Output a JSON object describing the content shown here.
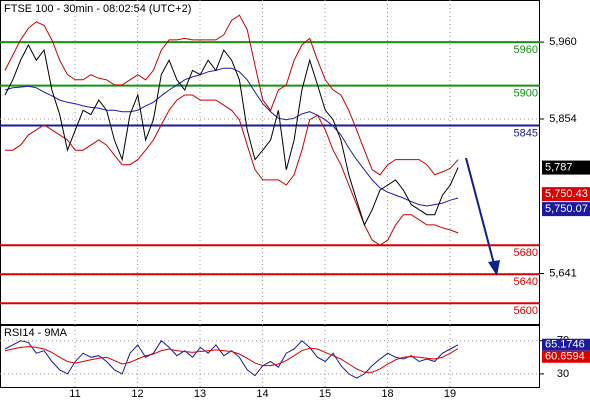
{
  "chart_data": [
    {
      "type": "line",
      "title": "FTSE 100 - 30min - 08:02:54 (UTC+2)",
      "x": [
        -0.12,
        0.005,
        0.13,
        0.255,
        0.38,
        0.505,
        0.63,
        0.755,
        0.88,
        1.005,
        1.13,
        1.255,
        1.38,
        1.505,
        1.63,
        1.755,
        1.88,
        2.005,
        2.13,
        2.255,
        2.38,
        2.505,
        2.63,
        2.755,
        2.88,
        3.005,
        3.13,
        3.255,
        3.38,
        3.505,
        3.63,
        3.755,
        3.88,
        4.005,
        4.13,
        4.255,
        4.38,
        4.505,
        4.63,
        4.755,
        4.88,
        5.005,
        5.13,
        5.255,
        5.38,
        5.505,
        5.63,
        5.755,
        5.88,
        6.005,
        6.13,
        6.255,
        6.38,
        6.505,
        6.63,
        6.755,
        6.88,
        7.005,
        7.13
      ],
      "xlim": [
        -0.2,
        8.44
      ],
      "xticks": [
        {
          "value": 1,
          "label": "11"
        },
        {
          "value": 2,
          "label": "12"
        },
        {
          "value": 3,
          "label": "13"
        },
        {
          "value": 4,
          "label": "14"
        },
        {
          "value": 5,
          "label": "15"
        },
        {
          "value": 6,
          "label": "18"
        },
        {
          "value": 7,
          "label": "19"
        }
      ],
      "ylim": [
        5570,
        6018
      ],
      "yticks": [
        {
          "value": 5960,
          "label": "5,960"
        },
        {
          "value": 5854,
          "label": "5,854"
        },
        {
          "value": 5641,
          "label": "5,641"
        }
      ],
      "grid": true,
      "series": [
        {
          "color": "#cc0000",
          "values": [
            5921,
            5942,
            5963,
            5979,
            5988,
            5983,
            5963,
            5935,
            5915,
            5908,
            5908,
            5915,
            5910,
            5908,
            5901,
            5901,
            5908,
            5915,
            5908,
            5921,
            5949,
            5963,
            5963,
            5965,
            5963,
            5963,
            5963,
            5963,
            5970,
            5990,
            5997,
            5977,
            5928,
            5880,
            5866,
            5894,
            5901,
            5935,
            5956,
            5965,
            5935,
            5908,
            5894,
            5887,
            5866,
            5839,
            5811,
            5784,
            5777,
            5791,
            5798,
            5798,
            5798,
            5798,
            5791,
            5777,
            5781,
            5786,
            5798
          ]
        },
        {
          "color": "#cc0000",
          "values": [
            5811,
            5811,
            5818,
            5832,
            5839,
            5846,
            5839,
            5832,
            5825,
            5811,
            5811,
            5818,
            5825,
            5818,
            5804,
            5791,
            5791,
            5798,
            5811,
            5825,
            5846,
            5866,
            5880,
            5887,
            5887,
            5880,
            5880,
            5880,
            5873,
            5866,
            5853,
            5818,
            5784,
            5770,
            5770,
            5770,
            5763,
            5777,
            5811,
            5853,
            5859,
            5839,
            5811,
            5791,
            5763,
            5736,
            5708,
            5687,
            5680,
            5687,
            5708,
            5722,
            5722,
            5715,
            5708,
            5708,
            5704,
            5701,
            5697
          ]
        },
        {
          "color": "#1c1cb0",
          "values": [
            5894,
            5897,
            5898,
            5899,
            5897,
            5891,
            5886,
            5880,
            5877,
            5875,
            5872,
            5870,
            5869,
            5866,
            5866,
            5864,
            5864,
            5866,
            5872,
            5877,
            5886,
            5894,
            5901,
            5908,
            5912,
            5915,
            5919,
            5921,
            5924,
            5924,
            5919,
            5908,
            5891,
            5875,
            5864,
            5855,
            5853,
            5855,
            5861,
            5864,
            5859,
            5853,
            5844,
            5832,
            5814,
            5798,
            5784,
            5770,
            5759,
            5753,
            5749,
            5745,
            5740,
            5736,
            5734,
            5736,
            5738,
            5742,
            5745
          ]
        },
        {
          "color": "#000000",
          "values": [
            5887,
            5908,
            5935,
            5956,
            5935,
            5949,
            5894,
            5860,
            5811,
            5839,
            5866,
            5860,
            5880,
            5866,
            5825,
            5798,
            5860,
            5887,
            5825,
            5853,
            5915,
            5935,
            5908,
            5894,
            5921,
            5915,
            5935,
            5921,
            5949,
            5935,
            5908,
            5839,
            5798,
            5811,
            5825,
            5866,
            5784,
            5825,
            5894,
            5935,
            5901,
            5866,
            5853,
            5825,
            5777,
            5742,
            5708,
            5729,
            5756,
            5763,
            5770,
            5756,
            5736,
            5729,
            5722,
            5722,
            5749,
            5763,
            5787
          ]
        }
      ],
      "levels": [
        {
          "value": 5960,
          "color": "#149414"
        },
        {
          "value": 5900,
          "color": "#149414"
        },
        {
          "value": 5845,
          "color": "#1a1aa0"
        },
        {
          "value": 5680,
          "color": "#dd0000"
        },
        {
          "value": 5640,
          "color": "#dd0000"
        },
        {
          "value": 5600,
          "color": "#dd0000"
        }
      ],
      "markers": [
        {
          "value": 5787,
          "label": "5,787",
          "color": "#000000"
        },
        {
          "value": 5750.43,
          "label": "5,750.43",
          "color": "#dd0000"
        },
        {
          "value": 5750.07,
          "label": "5,750.07",
          "color": "#1a1aa0"
        }
      ]
    },
    {
      "type": "line",
      "title": "RSI14 - 9MA",
      "ylim": [
        13,
        89
      ],
      "yticks": [
        30,
        70
      ],
      "series": [
        {
          "color": "#1a1aa0",
          "values": [
            60,
            65,
            70,
            68,
            55,
            58,
            45,
            35,
            30,
            45,
            55,
            50,
            52,
            45,
            35,
            30,
            55,
            65,
            50,
            55,
            70,
            62,
            52,
            58,
            50,
            62,
            55,
            65,
            52,
            58,
            50,
            35,
            28,
            40,
            45,
            38,
            55,
            60,
            70,
            62,
            50,
            45,
            55,
            40,
            30,
            25,
            30,
            40,
            48,
            55,
            50,
            48,
            52,
            45,
            48,
            45,
            55,
            60,
            65.1746
          ]
        },
        {
          "color": "#dd0000",
          "values": [
            58,
            60,
            62,
            63,
            62,
            60,
            56,
            50,
            45,
            43,
            45,
            47,
            49,
            50,
            46,
            42,
            44,
            48,
            52,
            54,
            58,
            60,
            58,
            57,
            56,
            57,
            58,
            59,
            58,
            57,
            54,
            49,
            43,
            40,
            40,
            42,
            46,
            52,
            58,
            61,
            60,
            56,
            52,
            48,
            42,
            36,
            32,
            32,
            36,
            42,
            47,
            50,
            51,
            50,
            49,
            48,
            50,
            55,
            60.6594
          ]
        }
      ]
    }
  ]
}
